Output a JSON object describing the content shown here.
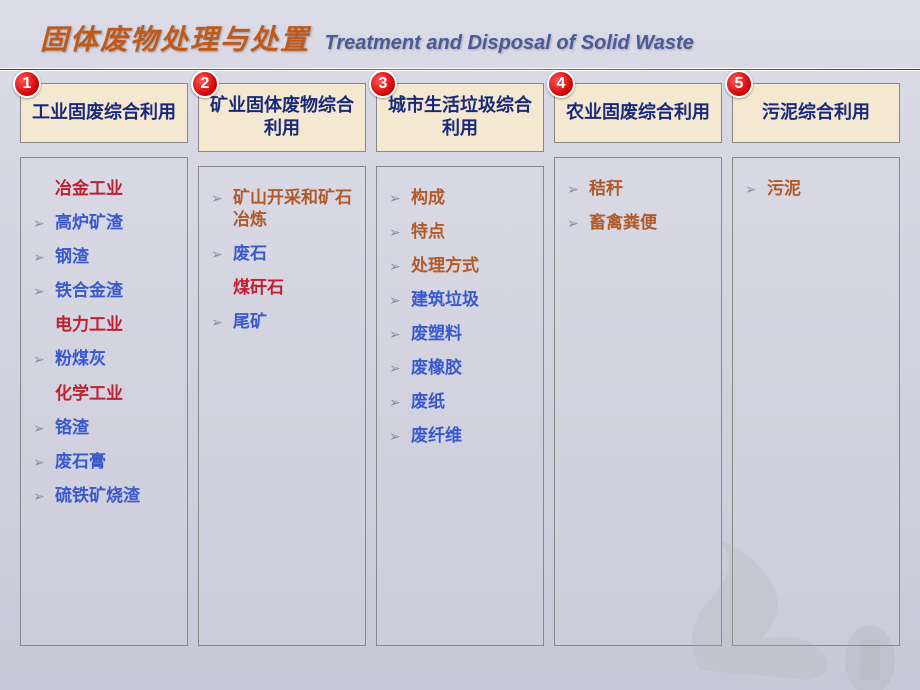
{
  "title_cn": "固体废物处理与处置",
  "title_en": "Treatment and Disposal of Solid Waste",
  "columns": [
    {
      "num": "1",
      "header": "工业固废综合利用",
      "items": [
        {
          "text": "冶金工业",
          "color": "red",
          "bullet": false
        },
        {
          "text": "高炉矿渣",
          "color": "blue",
          "bullet": true
        },
        {
          "text": "钢渣",
          "color": "blue",
          "bullet": true
        },
        {
          "text": "铁合金渣",
          "color": "blue",
          "bullet": true
        },
        {
          "text": "电力工业",
          "color": "red",
          "bullet": false
        },
        {
          "text": "粉煤灰",
          "color": "blue",
          "bullet": true
        },
        {
          "text": "化学工业",
          "color": "red",
          "bullet": false
        },
        {
          "text": "铬渣",
          "color": "blue",
          "bullet": true
        },
        {
          "text": "废石膏",
          "color": "blue",
          "bullet": true
        },
        {
          "text": "硫铁矿烧渣",
          "color": "blue",
          "bullet": true
        }
      ]
    },
    {
      "num": "2",
      "header": "矿业固体废物综合利用",
      "items": [
        {
          "text": "矿山开采和矿石冶炼",
          "color": "brown",
          "bullet": true
        },
        {
          "text": "废石",
          "color": "blue",
          "bullet": true
        },
        {
          "text": "煤矸石",
          "color": "red",
          "bullet": false
        },
        {
          "text": "尾矿",
          "color": "blue",
          "bullet": true
        }
      ]
    },
    {
      "num": "3",
      "header": "城市生活垃圾综合利用",
      "items": [
        {
          "text": "构成",
          "color": "brown",
          "bullet": true
        },
        {
          "text": "特点",
          "color": "brown",
          "bullet": true
        },
        {
          "text": "处理方式",
          "color": "brown",
          "bullet": true
        },
        {
          "text": "建筑垃圾",
          "color": "blue",
          "bullet": true
        },
        {
          "text": "废塑料",
          "color": "blue",
          "bullet": true
        },
        {
          "text": "废橡胶",
          "color": "blue",
          "bullet": true
        },
        {
          "text": "废纸",
          "color": "blue",
          "bullet": true
        },
        {
          "text": "废纤维",
          "color": "blue",
          "bullet": true
        }
      ]
    },
    {
      "num": "4",
      "header": "农业固废综合利用",
      "items": [
        {
          "text": "秸秆",
          "color": "brown",
          "bullet": true
        },
        {
          "text": "畜禽粪便",
          "color": "brown",
          "bullet": true
        }
      ]
    },
    {
      "num": "5",
      "header": "污泥综合利用",
      "items": [
        {
          "text": "污泥",
          "color": "brown",
          "bullet": true
        }
      ]
    }
  ]
}
